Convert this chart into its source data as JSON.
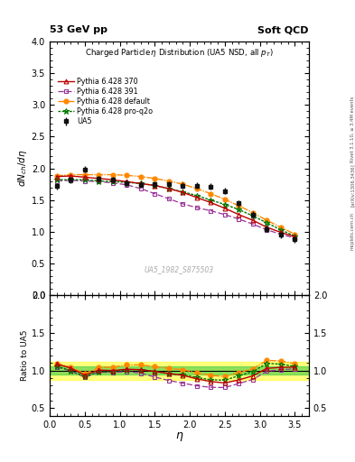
{
  "title_left": "53 GeV pp",
  "title_right": "Soft QCD",
  "plot_title": "Charged Particleη Distribution (UA5 NSD, all p_{T})",
  "ylabel_main": "dN_{ch}/dη",
  "ylabel_ratio": "Ratio to UA5",
  "xlabel": "η",
  "watermark": "UA5_1982_S875503",
  "rivet_label": "Rivet 3.1.10, ≥ 3.4M events",
  "arxiv_label": "[arXiv:1306.3436]",
  "mcplots_label": "mcplots.cern.ch",
  "ua5_eta": [
    0.1,
    0.3,
    0.5,
    0.7,
    0.9,
    1.1,
    1.3,
    1.5,
    1.7,
    1.9,
    2.1,
    2.3,
    2.5,
    2.7,
    2.9,
    3.1,
    3.3,
    3.5
  ],
  "ua5_val": [
    1.72,
    1.82,
    1.98,
    1.83,
    1.82,
    1.76,
    1.74,
    1.75,
    1.75,
    1.73,
    1.73,
    1.71,
    1.64,
    1.45,
    1.27,
    1.04,
    0.95,
    0.88
  ],
  "ua5_err": [
    0.05,
    0.05,
    0.05,
    0.05,
    0.05,
    0.05,
    0.05,
    0.05,
    0.05,
    0.05,
    0.05,
    0.05,
    0.05,
    0.05,
    0.05,
    0.05,
    0.05,
    0.05
  ],
  "p370_eta": [
    0.1,
    0.3,
    0.5,
    0.7,
    0.9,
    1.1,
    1.3,
    1.5,
    1.7,
    1.9,
    2.1,
    2.3,
    2.5,
    2.7,
    2.9,
    3.1,
    3.3,
    3.5
  ],
  "p370_val": [
    1.87,
    1.88,
    1.86,
    1.84,
    1.82,
    1.79,
    1.76,
    1.73,
    1.68,
    1.62,
    1.54,
    1.46,
    1.37,
    1.27,
    1.18,
    1.07,
    0.99,
    0.92
  ],
  "p391_eta": [
    0.1,
    0.3,
    0.5,
    0.7,
    0.9,
    1.1,
    1.3,
    1.5,
    1.7,
    1.9,
    2.1,
    2.3,
    2.5,
    2.7,
    2.9,
    3.1,
    3.3,
    3.5
  ],
  "p391_val": [
    1.8,
    1.81,
    1.8,
    1.79,
    1.77,
    1.74,
    1.68,
    1.6,
    1.52,
    1.44,
    1.38,
    1.33,
    1.27,
    1.2,
    1.12,
    1.03,
    0.96,
    0.9
  ],
  "pdef_eta": [
    0.1,
    0.3,
    0.5,
    0.7,
    0.9,
    1.1,
    1.3,
    1.5,
    1.7,
    1.9,
    2.1,
    2.3,
    2.5,
    2.7,
    2.9,
    3.1,
    3.3,
    3.5
  ],
  "pdef_val": [
    1.88,
    1.9,
    1.9,
    1.9,
    1.9,
    1.89,
    1.87,
    1.84,
    1.8,
    1.75,
    1.68,
    1.6,
    1.51,
    1.41,
    1.3,
    1.18,
    1.07,
    0.96
  ],
  "pq2o_eta": [
    0.1,
    0.3,
    0.5,
    0.7,
    0.9,
    1.1,
    1.3,
    1.5,
    1.7,
    1.9,
    2.1,
    2.3,
    2.5,
    2.7,
    2.9,
    3.1,
    3.3,
    3.5
  ],
  "pq2o_val": [
    1.82,
    1.82,
    1.82,
    1.8,
    1.79,
    1.78,
    1.76,
    1.73,
    1.68,
    1.63,
    1.57,
    1.5,
    1.43,
    1.35,
    1.25,
    1.14,
    1.03,
    0.93
  ],
  "color_ua5": "#111111",
  "color_370": "#bb0000",
  "color_391": "#993399",
  "color_def": "#ff8800",
  "color_q2o": "#007700",
  "ylim_main": [
    0.0,
    4.0
  ],
  "ylim_ratio": [
    0.4,
    2.0
  ],
  "xlim": [
    0.0,
    3.7
  ],
  "band_green_lo": 0.95,
  "band_green_hi": 1.05,
  "band_yellow_lo": 0.88,
  "band_yellow_hi": 1.12
}
